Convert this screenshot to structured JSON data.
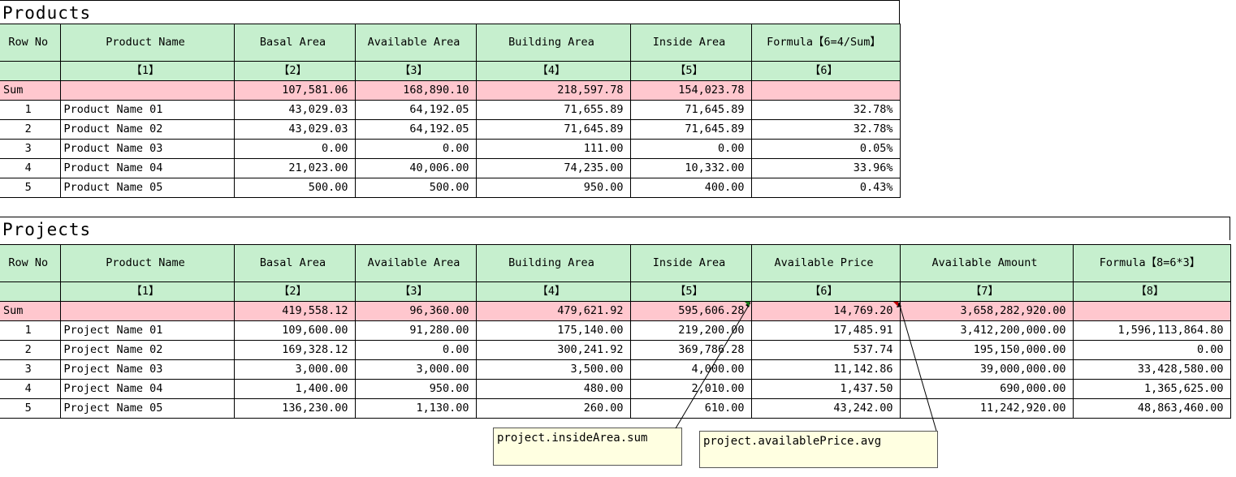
{
  "products": {
    "title": "Products",
    "headers": [
      "Row No",
      "Product Name",
      "Basal Area",
      "Available Area",
      "Building Area",
      "Inside Area",
      "Formula【6=4/Sum】"
    ],
    "subheaders": [
      "",
      "【1】",
      "【2】",
      "【3】",
      "【4】",
      "【5】",
      "【6】"
    ],
    "sum": [
      "Sum",
      "",
      "107,581.06",
      "168,890.10",
      "218,597.78",
      "154,023.78",
      ""
    ],
    "rows": [
      [
        "1",
        "Product Name 01",
        "43,029.03",
        "64,192.05",
        "71,655.89",
        "71,645.89",
        "32.78%"
      ],
      [
        "2",
        "Product Name 02",
        "43,029.03",
        "64,192.05",
        "71,645.89",
        "71,645.89",
        "32.78%"
      ],
      [
        "3",
        "Product Name 03",
        "0.00",
        "0.00",
        "111.00",
        "0.00",
        "0.05%"
      ],
      [
        "4",
        "Product Name 04",
        "21,023.00",
        "40,006.00",
        "74,235.00",
        "10,332.00",
        "33.96%"
      ],
      [
        "5",
        "Product Name 05",
        "500.00",
        "500.00",
        "950.00",
        "400.00",
        "0.43%"
      ]
    ]
  },
  "projects": {
    "title": "Projects",
    "headers": [
      "Row No",
      "Product Name",
      "Basal Area",
      "Available Area",
      "Building Area",
      "Inside Area",
      "Available Price",
      "Available Amount",
      "Formula【8=6*3】"
    ],
    "subheaders": [
      "",
      "【1】",
      "【2】",
      "【3】",
      "【4】",
      "【5】",
      "【6】",
      "【7】",
      "【8】"
    ],
    "sum": [
      "Sum",
      "",
      "419,558.12",
      "96,360.00",
      "479,621.92",
      "595,606.28",
      "14,769.20",
      "3,658,282,920.00",
      ""
    ],
    "rows": [
      [
        "1",
        "Project Name 01",
        "109,600.00",
        "91,280.00",
        "175,140.00",
        "219,200.00",
        "17,485.91",
        "3,412,200,000.00",
        "1,596,113,864.80"
      ],
      [
        "2",
        "Project Name 02",
        "169,328.12",
        "0.00",
        "300,241.92",
        "369,786.28",
        "537.74",
        "195,150,000.00",
        "0.00"
      ],
      [
        "3",
        "Project Name 03",
        "3,000.00",
        "3,000.00",
        "3,500.00",
        "4,000.00",
        "11,142.86",
        "39,000,000.00",
        "33,428,580.00"
      ],
      [
        "4",
        "Project Name 04",
        "1,400.00",
        "950.00",
        "480.00",
        "2,010.00",
        "1,437.50",
        "690,000.00",
        "1,365,625.00"
      ],
      [
        "5",
        "Project Name 05",
        "136,230.00",
        "1,130.00",
        "260.00",
        "610.00",
        "43,242.00",
        "11,242,920.00",
        "48,863,460.00"
      ]
    ]
  },
  "comments": {
    "inside_area": "project.insideArea.sum",
    "available_price": "project.availablePrice.avg"
  },
  "colors": {
    "header_bg": "#c6efce",
    "sum_bg": "#ffc7ce",
    "comment_bg": "#ffffe1"
  }
}
